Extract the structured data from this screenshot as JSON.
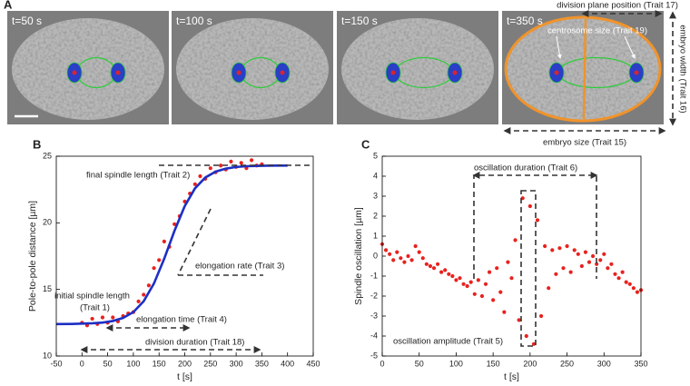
{
  "panel_labels": [
    "A",
    "B",
    "C"
  ],
  "images": [
    "t=50 s",
    "t=100 s",
    "t=150 s",
    "t=350 s"
  ],
  "image_annotations": [
    "division plane position (Trait 17)",
    "centrosome size (Trait 19)",
    "embryo width (Trait 16)",
    "embryo size (Trait 15)"
  ],
  "chart_data": [
    {
      "type": "scatter",
      "xlabel": "t [s]",
      "ylabel": "Pole-to-pole distance [µm]",
      "xlim": [
        -50,
        450
      ],
      "xticks": [
        -50,
        0,
        50,
        100,
        150,
        200,
        250,
        300,
        350,
        400,
        450
      ],
      "ylim": [
        10,
        25
      ],
      "yticks": [
        10,
        15,
        20,
        25
      ],
      "annotations": [
        "final spindle length (Trait 2)",
        "elongation rate (Trait 3)",
        "initial spindle length",
        "(Trait 1)",
        "elongation time (Trait 4)",
        "division duration (Trait 18)"
      ],
      "series": [
        {
          "color": "#e8221e",
          "mark": "dot",
          "x": [
            0,
            10,
            20,
            30,
            40,
            50,
            60,
            70,
            80,
            90,
            100,
            110,
            120,
            130,
            140,
            150,
            160,
            170,
            180,
            190,
            200,
            210,
            220,
            230,
            240,
            250,
            260,
            270,
            280,
            290,
            300,
            310,
            320,
            330,
            340,
            350
          ],
          "values": [
            12.5,
            12.3,
            12.8,
            12.4,
            12.9,
            12.5,
            12.9,
            12.6,
            13.0,
            13.2,
            13.3,
            14.1,
            14.6,
            15.3,
            16.6,
            17.2,
            18.6,
            18.2,
            19.9,
            20.5,
            21.6,
            22.2,
            22.9,
            23.5,
            23.3,
            24.1,
            23.8,
            24.3,
            24.0,
            24.6,
            24.2,
            24.5,
            24.1,
            24.7,
            24.3,
            24.4
          ]
        },
        {
          "color": "#1d2fc4",
          "mark": "line",
          "x": [
            -50,
            -20,
            0,
            20,
            40,
            60,
            80,
            100,
            120,
            140,
            160,
            180,
            200,
            220,
            240,
            260,
            280,
            300,
            320,
            340,
            360,
            380,
            400
          ],
          "values": [
            12.4,
            12.41,
            12.43,
            12.46,
            12.51,
            12.63,
            12.86,
            13.3,
            14.11,
            15.44,
            17.3,
            19.4,
            21.26,
            22.59,
            23.4,
            23.84,
            24.07,
            24.19,
            24.25,
            24.27,
            24.29,
            24.3,
            24.3
          ]
        }
      ]
    },
    {
      "type": "scatter",
      "xlabel": "t [s]",
      "ylabel": "Spindle oscillation [µm]",
      "xlim": [
        0,
        350
      ],
      "xticks": [
        0,
        50,
        100,
        150,
        200,
        250,
        300,
        350
      ],
      "ylim": [
        -5,
        5
      ],
      "yticks": [
        -5,
        -4,
        -3,
        -2,
        -1,
        0,
        1,
        2,
        3,
        4,
        5
      ],
      "annotations": [
        "oscillation duration (Trait 6)",
        "oscillation amplitude (Trait 5)"
      ],
      "series": [
        {
          "color": "#e8221e",
          "mark": "dot",
          "x": [
            0,
            5,
            10,
            15,
            20,
            25,
            30,
            35,
            40,
            45,
            50,
            55,
            60,
            65,
            70,
            75,
            80,
            85,
            90,
            95,
            100,
            105,
            110,
            115,
            120,
            125,
            130,
            135,
            140,
            145,
            150,
            155,
            160,
            165,
            170,
            175,
            180,
            185,
            190,
            195,
            200,
            205,
            210,
            215,
            220,
            225,
            230,
            235,
            240,
            245,
            250,
            255,
            260,
            265,
            270,
            275,
            280,
            285,
            290,
            295,
            300,
            305,
            310,
            315,
            320,
            325,
            330,
            335,
            340,
            345,
            350
          ],
          "values": [
            0.6,
            0.3,
            0.1,
            -0.2,
            0.2,
            -0.1,
            -0.3,
            0.0,
            -0.2,
            0.5,
            0.2,
            -0.1,
            -0.4,
            -0.5,
            -0.6,
            -0.4,
            -0.8,
            -0.7,
            -0.9,
            -1.0,
            -1.2,
            -1.1,
            -1.4,
            -1.5,
            -1.3,
            -1.9,
            -1.2,
            -2.0,
            -1.4,
            -0.8,
            -2.2,
            -0.6,
            -1.8,
            -2.8,
            -0.3,
            -1.1,
            0.8,
            -3.2,
            2.9,
            -4.0,
            2.5,
            -4.4,
            1.8,
            -3.0,
            0.5,
            -1.6,
            0.3,
            -0.9,
            0.4,
            -0.6,
            0.5,
            -0.8,
            0.3,
            0.1,
            -0.5,
            0.2,
            -0.3,
            0.0,
            -0.4,
            -0.2,
            0.1,
            -0.6,
            -0.4,
            -0.9,
            -1.1,
            -0.8,
            -1.3,
            -1.4,
            -1.6,
            -1.8,
            -1.7
          ]
        }
      ]
    }
  ]
}
